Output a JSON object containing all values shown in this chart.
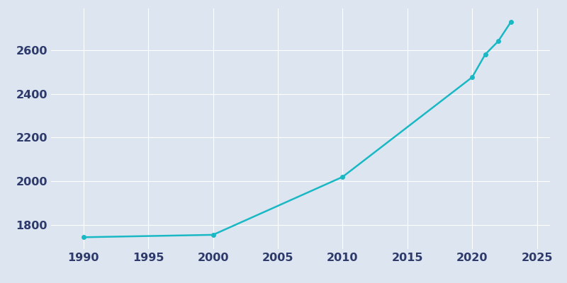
{
  "years": [
    1990,
    2000,
    2010,
    2020,
    2021,
    2022,
    2023
  ],
  "population": [
    1744,
    1755,
    2020,
    2476,
    2580,
    2640,
    2730
  ],
  "line_color": "#1ab8c4",
  "marker_color": "#1ab8c4",
  "background_color": "#dde6f0",
  "grid_color": "#ffffff",
  "tick_label_color": "#2d3a6b",
  "xlim": [
    1987.5,
    2026
  ],
  "ylim": [
    1690,
    2790
  ],
  "xticks": [
    1990,
    1995,
    2000,
    2005,
    2010,
    2015,
    2020,
    2025
  ],
  "yticks": [
    1800,
    2000,
    2200,
    2400,
    2600
  ],
  "line_width": 1.8,
  "marker_size": 4,
  "tick_fontsize": 11.5
}
